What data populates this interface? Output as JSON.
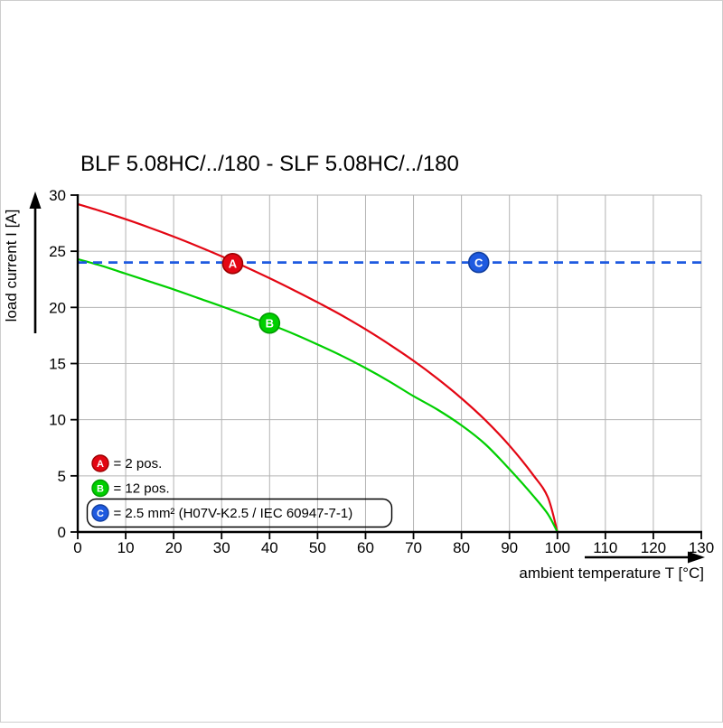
{
  "chart_data": {
    "type": "line",
    "title": "BLF 5.08HC/../180 - SLF 5.08HC/../180",
    "xlabel": "ambient temperature T [°C]",
    "ylabel": "load current I [A]",
    "xlim": [
      0,
      130
    ],
    "ylim": [
      0,
      30
    ],
    "xticks": [
      0,
      10,
      20,
      30,
      40,
      50,
      60,
      70,
      80,
      90,
      100,
      110,
      120,
      130
    ],
    "yticks": [
      0,
      5,
      10,
      15,
      20,
      25,
      30
    ],
    "grid": true,
    "legend_position": "bottom-left",
    "colors": {
      "grid": "#b3b3b3",
      "axis": "#000000",
      "red": "#e30613",
      "red_dark": "#9b0000",
      "green": "#00cf00",
      "green_dark": "#009a00",
      "blue": "#1e5ae0",
      "blue_dark": "#123f9e"
    },
    "series": [
      {
        "id": "A",
        "legend_label": "= 2 pos.",
        "color": "#e30613",
        "color_dark": "#9b0000",
        "line_style": "solid",
        "marker": {
          "t": 32.3,
          "i": 23.9,
          "letter": "A"
        },
        "points": [
          [
            0,
            29.2
          ],
          [
            5,
            28.55
          ],
          [
            10,
            27.85
          ],
          [
            15,
            27.1
          ],
          [
            20,
            26.3
          ],
          [
            25,
            25.45
          ],
          [
            30,
            24.55
          ],
          [
            35,
            23.6
          ],
          [
            40,
            22.6
          ],
          [
            45,
            21.55
          ],
          [
            50,
            20.45
          ],
          [
            55,
            19.3
          ],
          [
            60,
            18.05
          ],
          [
            65,
            16.7
          ],
          [
            70,
            15.25
          ],
          [
            75,
            13.65
          ],
          [
            80,
            11.9
          ],
          [
            85,
            9.95
          ],
          [
            90,
            7.7
          ],
          [
            95,
            5.05
          ],
          [
            98,
            3.1
          ],
          [
            100,
            0
          ]
        ]
      },
      {
        "id": "B",
        "legend_label": "= 12 pos.",
        "color": "#00cf00",
        "color_dark": "#009a00",
        "line_style": "solid",
        "marker": {
          "t": 40,
          "i": 18.6,
          "letter": "B"
        },
        "points": [
          [
            0,
            24.3
          ],
          [
            5,
            23.7
          ],
          [
            10,
            23.0
          ],
          [
            15,
            22.3
          ],
          [
            20,
            21.6
          ],
          [
            25,
            20.85
          ],
          [
            30,
            20.1
          ],
          [
            35,
            19.3
          ],
          [
            40,
            18.5
          ],
          [
            45,
            17.65
          ],
          [
            50,
            16.7
          ],
          [
            55,
            15.7
          ],
          [
            60,
            14.6
          ],
          [
            65,
            13.4
          ],
          [
            70,
            12.1
          ],
          [
            75,
            10.9
          ],
          [
            80,
            9.5
          ],
          [
            85,
            7.8
          ],
          [
            90,
            5.6
          ],
          [
            95,
            3.2
          ],
          [
            98,
            1.6
          ],
          [
            100,
            0
          ]
        ]
      },
      {
        "id": "C",
        "legend_label": "= 2.5 mm² (H07V-K2.5 / IEC 60947-7-1)",
        "color": "#1e5ae0",
        "color_dark": "#123f9e",
        "line_style": "dashed",
        "legend_boxed": true,
        "marker": {
          "t": 83.6,
          "i": 24,
          "letter": "C"
        },
        "points": [
          [
            0,
            24
          ],
          [
            130,
            24
          ]
        ]
      }
    ]
  }
}
